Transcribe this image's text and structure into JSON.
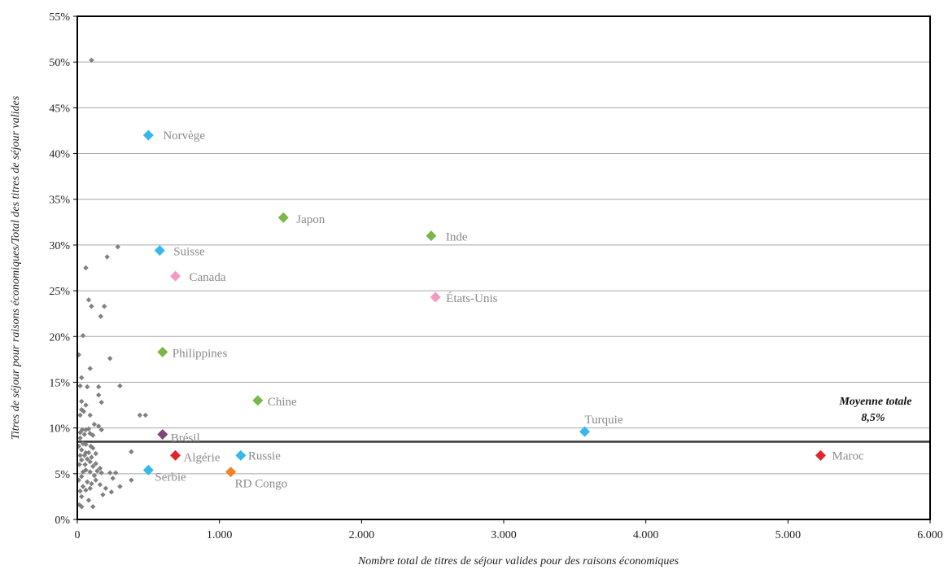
{
  "chart_data": {
    "type": "scatter",
    "title": "",
    "xlabel": "Nombre total de titres de séjour valides pour des raisons économiques",
    "ylabel": "Titres de séjour pour raisons économiques/Total des titres de séjour valides",
    "xlim": [
      0,
      6000
    ],
    "ylim": [
      0,
      55
    ],
    "x_ticks": [
      0,
      1000,
      2000,
      3000,
      4000,
      5000,
      6000
    ],
    "x_tick_labels": [
      "0",
      "1.000",
      "2.000",
      "3.000",
      "4.000",
      "5.000",
      "6.000"
    ],
    "y_ticks": [
      0,
      5,
      10,
      15,
      20,
      25,
      30,
      35,
      40,
      45,
      50,
      55
    ],
    "y_tick_labels": [
      "0%",
      "5%",
      "10%",
      "15%",
      "20%",
      "25%",
      "30%",
      "35%",
      "40%",
      "45%",
      "50%",
      "55%"
    ],
    "grid": "horizontal",
    "colors": {
      "gray": "#808080",
      "blue": "#35b8ea",
      "green": "#7ab648",
      "pink": "#f19bc3",
      "purple": "#7b4a7a",
      "red": "#e3242b",
      "orange": "#f58220"
    },
    "average_line": {
      "value": 8.5,
      "label_lines": [
        "Moyenne totale",
        "8,5%"
      ]
    },
    "labeled_points": [
      {
        "name": "Norvège",
        "x": 500,
        "y": 42,
        "color": "blue"
      },
      {
        "name": "Japon",
        "x": 1450,
        "y": 33,
        "color": "green"
      },
      {
        "name": "Inde",
        "x": 2490,
        "y": 31,
        "color": "green"
      },
      {
        "name": "Suisse",
        "x": 580,
        "y": 29.4,
        "color": "blue"
      },
      {
        "name": "Canada",
        "x": 690,
        "y": 26.6,
        "color": "pink"
      },
      {
        "name": "États-Unis",
        "x": 2520,
        "y": 24.3,
        "color": "pink"
      },
      {
        "name": "Philippines",
        "x": 600,
        "y": 18.3,
        "color": "green"
      },
      {
        "name": "Chine",
        "x": 1270,
        "y": 13,
        "color": "green"
      },
      {
        "name": "Turquie",
        "x": 3570,
        "y": 9.6,
        "color": "blue"
      },
      {
        "name": "Brésil",
        "x": 600,
        "y": 9.3,
        "color": "purple"
      },
      {
        "name": "Algérie",
        "x": 690,
        "y": 7,
        "color": "red"
      },
      {
        "name": "Russie",
        "x": 1150,
        "y": 7,
        "color": "blue"
      },
      {
        "name": "Maroc",
        "x": 5230,
        "y": 7,
        "color": "red"
      },
      {
        "name": "Serbie",
        "x": 500,
        "y": 5.4,
        "color": "blue"
      },
      {
        "name": "RD Congo",
        "x": 1080,
        "y": 5.2,
        "color": "orange"
      }
    ],
    "other_points": [
      [
        100,
        50.2
      ],
      [
        285,
        29.8
      ],
      [
        210,
        28.7
      ],
      [
        60,
        27.5
      ],
      [
        80,
        24
      ],
      [
        100,
        23.3
      ],
      [
        190,
        23.3
      ],
      [
        165,
        22.2
      ],
      [
        40,
        20.1
      ],
      [
        230,
        17.6
      ],
      [
        10,
        18
      ],
      [
        90,
        16.5
      ],
      [
        30,
        15.5
      ],
      [
        150,
        14.5
      ],
      [
        300,
        14.6
      ],
      [
        20,
        14.6
      ],
      [
        70,
        14.5
      ],
      [
        150,
        13.6
      ],
      [
        170,
        12.8
      ],
      [
        30,
        12.9
      ],
      [
        60,
        12.5
      ],
      [
        30,
        12
      ],
      [
        45,
        11.8
      ],
      [
        20,
        11.4
      ],
      [
        90,
        11.4
      ],
      [
        440,
        11.4
      ],
      [
        480,
        11.4
      ],
      [
        120,
        10.4
      ],
      [
        150,
        10.2
      ],
      [
        170,
        9.8
      ],
      [
        35,
        9.8
      ],
      [
        60,
        9.8
      ],
      [
        80,
        9.9
      ],
      [
        20,
        9.5
      ],
      [
        50,
        9.3
      ],
      [
        90,
        9.4
      ],
      [
        110,
        9.2
      ],
      [
        20,
        8.9
      ],
      [
        40,
        8.3
      ],
      [
        60,
        8.2
      ],
      [
        10,
        8.0
      ],
      [
        95,
        8.0
      ],
      [
        110,
        7.8
      ],
      [
        380,
        7.4
      ],
      [
        30,
        7.6
      ],
      [
        60,
        7.3
      ],
      [
        80,
        7.3
      ],
      [
        130,
        7.2
      ],
      [
        20,
        7.0
      ],
      [
        50,
        7.0
      ],
      [
        100,
        6.8
      ],
      [
        70,
        6.6
      ],
      [
        30,
        6.5
      ],
      [
        90,
        6.3
      ],
      [
        130,
        6.1
      ],
      [
        15,
        6.0
      ],
      [
        55,
        6.0
      ],
      [
        110,
        5.8
      ],
      [
        160,
        5.6
      ],
      [
        140,
        5.3
      ],
      [
        60,
        5.4
      ],
      [
        40,
        5.2
      ],
      [
        90,
        5.2
      ],
      [
        170,
        5.1
      ],
      [
        230,
        5.1
      ],
      [
        270,
        5.1
      ],
      [
        120,
        4.8
      ],
      [
        30,
        4.7
      ],
      [
        250,
        4.5
      ],
      [
        380,
        4.3
      ],
      [
        10,
        4.3
      ],
      [
        70,
        4.1
      ],
      [
        100,
        3.9
      ],
      [
        160,
        3.8
      ],
      [
        130,
        4.3
      ],
      [
        40,
        3.6
      ],
      [
        90,
        3.4
      ],
      [
        200,
        3.4
      ],
      [
        300,
        3.6
      ],
      [
        20,
        3.1
      ],
      [
        60,
        3.2
      ],
      [
        240,
        3.0
      ],
      [
        180,
        2.7
      ],
      [
        30,
        2.5
      ],
      [
        80,
        2.1
      ],
      [
        15,
        1.6
      ],
      [
        30,
        1.4
      ],
      [
        110,
        1.4
      ]
    ]
  }
}
